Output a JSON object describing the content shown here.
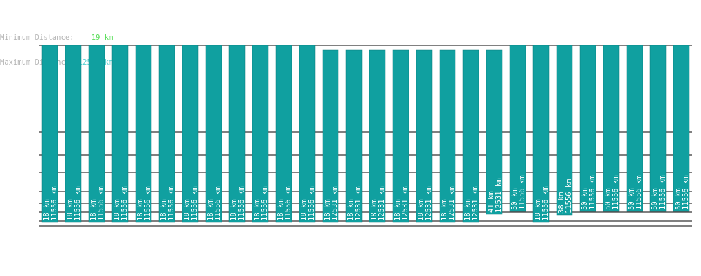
{
  "header": {
    "min_label": "Minimum Distance:",
    "min_value": "19 km",
    "max_label": "Maximum Distance:",
    "max_value": "12532 km"
  },
  "colors": {
    "bar": "#10a0a0",
    "bar_edge": "#0a7a7a",
    "grid": "#000000",
    "min_text": "#5ade5a",
    "max_text": "#5ad2d2",
    "label_text": "#b4b4b4"
  },
  "chart_data": {
    "type": "bar",
    "grid": true,
    "bars": [
      {
        "low": 18,
        "high": 11556,
        "label_low": "18 km",
        "label_high": "11556 km"
      },
      {
        "low": 18,
        "high": 11556,
        "label_low": "18 km",
        "label_high": "11556 km"
      },
      {
        "low": 18,
        "high": 11556,
        "label_low": "18 km",
        "label_high": "11556 km"
      },
      {
        "low": 18,
        "high": 11556,
        "label_low": "18 km",
        "label_high": "11556 km"
      },
      {
        "low": 18,
        "high": 11556,
        "label_low": "18 km",
        "label_high": "11556 km"
      },
      {
        "low": 18,
        "high": 11556,
        "label_low": "18 km",
        "label_high": "11556 km"
      },
      {
        "low": 18,
        "high": 11556,
        "label_low": "18 km",
        "label_high": "11556 km"
      },
      {
        "low": 18,
        "high": 11556,
        "label_low": "18 km",
        "label_high": "11556 km"
      },
      {
        "low": 18,
        "high": 11556,
        "label_low": "18 km",
        "label_high": "11556 km"
      },
      {
        "low": 18,
        "high": 11556,
        "label_low": "18 km",
        "label_high": "11556 km"
      },
      {
        "low": 18,
        "high": 11556,
        "label_low": "18 km",
        "label_high": "11556 km"
      },
      {
        "low": 18,
        "high": 11556,
        "label_low": "18 km",
        "label_high": "11556 km"
      },
      {
        "low": 18,
        "high": 12531,
        "label_low": "18 km",
        "label_high": "12531 km"
      },
      {
        "low": 18,
        "high": 12531,
        "label_low": "18 km",
        "label_high": "12531 km"
      },
      {
        "low": 18,
        "high": 12531,
        "label_low": "18 km",
        "label_high": "12531 km"
      },
      {
        "low": 18,
        "high": 12531,
        "label_low": "18 km",
        "label_high": "12531 km"
      },
      {
        "low": 18,
        "high": 12531,
        "label_low": "18 km",
        "label_high": "12531 km"
      },
      {
        "low": 18,
        "high": 12531,
        "label_low": "18 km",
        "label_high": "12531 km"
      },
      {
        "low": 18,
        "high": 12531,
        "label_low": "18 km",
        "label_high": "12531 km"
      },
      {
        "low": 41,
        "high": 12531,
        "label_low": "41 km",
        "label_high": "12531 km"
      },
      {
        "low": 50,
        "high": 11556,
        "label_low": "50 km",
        "label_high": "11556 km"
      },
      {
        "low": 18,
        "high": 11556,
        "label_low": "18 km",
        "label_high": "11556 km"
      },
      {
        "low": 38,
        "high": 11556,
        "label_low": "38 km",
        "label_high": "11556 km"
      },
      {
        "low": 50,
        "high": 11556,
        "label_low": "50 km",
        "label_high": "11556 km"
      },
      {
        "low": 50,
        "high": 11556,
        "label_low": "50 km",
        "label_high": "11556 km"
      },
      {
        "low": 50,
        "high": 11556,
        "label_low": "50 km",
        "label_high": "11556 km"
      },
      {
        "low": 50,
        "high": 11556,
        "label_low": "50 km",
        "label_high": "11556 km"
      },
      {
        "low": 50,
        "high": 11556,
        "label_low": "50 km",
        "label_high": "11556 km"
      }
    ]
  }
}
